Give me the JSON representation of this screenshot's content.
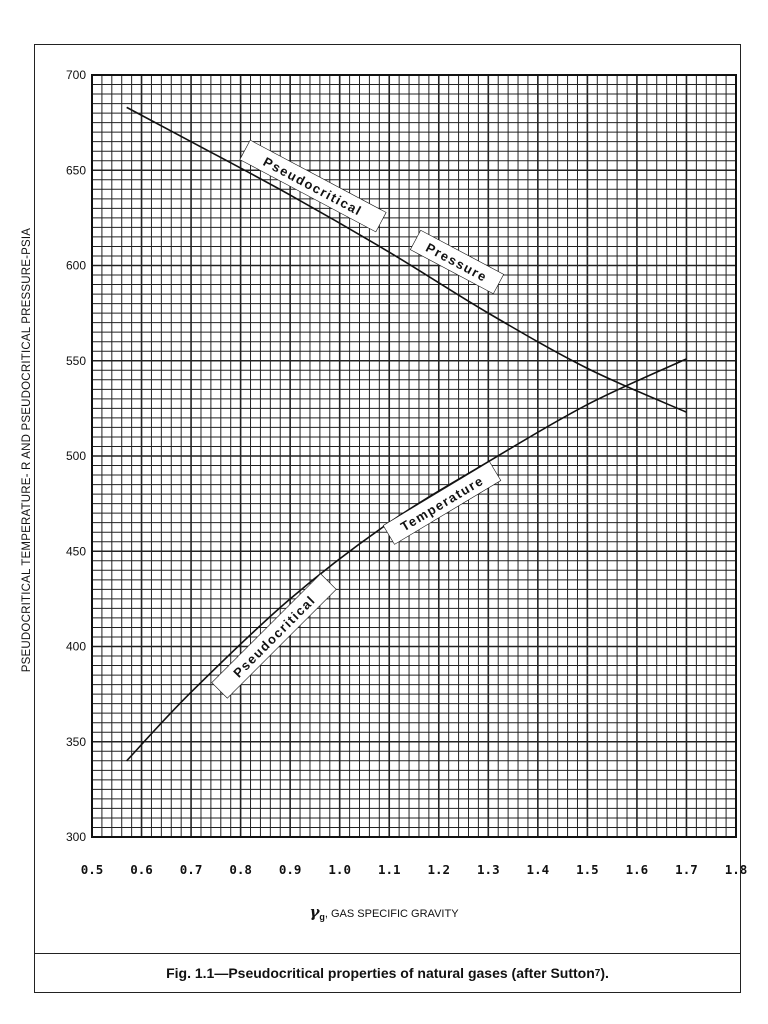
{
  "chart_data": {
    "type": "line",
    "title": "Fig. 1.1—Pseudocritical properties of natural gases (after Sutton7).",
    "xlabel": "γg, GAS SPECIFIC GRAVITY",
    "ylabel": "PSEUDOCRITICAL TEMPERATURE- R AND PSEUDOCRITICAL PRESSURE-PSIA",
    "xlim": [
      0.5,
      1.8
    ],
    "ylim": [
      300,
      700
    ],
    "grid": true,
    "xticks": [
      "0.5",
      "0.6",
      "0.7",
      "0.8",
      "0.9",
      "1.0",
      "1.1",
      "1.2",
      "1.3",
      "1.4",
      "1.5",
      "1.6",
      "1.7",
      "1.8"
    ],
    "yticks": [
      "300",
      "350",
      "400",
      "450",
      "500",
      "550",
      "600",
      "650",
      "700"
    ],
    "series": [
      {
        "name": "Pseudocritical Pressure",
        "x": [
          0.57,
          0.7,
          0.9,
          1.1,
          1.3,
          1.5,
          1.7
        ],
        "y": [
          683,
          665,
          637,
          607,
          575,
          546,
          523
        ]
      },
      {
        "name": "Pseudocritical Temperature",
        "x": [
          0.57,
          0.7,
          0.9,
          1.1,
          1.3,
          1.5,
          1.7
        ],
        "y": [
          340,
          376,
          425,
          465,
          497,
          527,
          551
        ]
      }
    ],
    "annotations": [
      {
        "text": "Pseudocritical",
        "series": "Pseudocritical Pressure"
      },
      {
        "text": "Pressure",
        "series": "Pseudocritical Pressure"
      },
      {
        "text": "Pseudocritical",
        "series": "Pseudocritical Temperature"
      },
      {
        "text": "Temperature",
        "series": "Pseudocritical Temperature"
      }
    ]
  },
  "caption": {
    "text": "Fig. 1.1—Pseudocritical properties of natural gases (after Sutton",
    "sup": "7",
    "end": ")."
  },
  "ylabel_text": "PSEUDOCRITICAL TEMPERATURE- R AND PSEUDOCRITICAL PRESSURE-PSIA",
  "xlabel": {
    "symbol": "γ",
    "sub": "g",
    "text": ", GAS SPECIFIC GRAVITY"
  },
  "colors": {
    "ink": "#111111",
    "grid": "#222222",
    "background": "#ffffff"
  }
}
